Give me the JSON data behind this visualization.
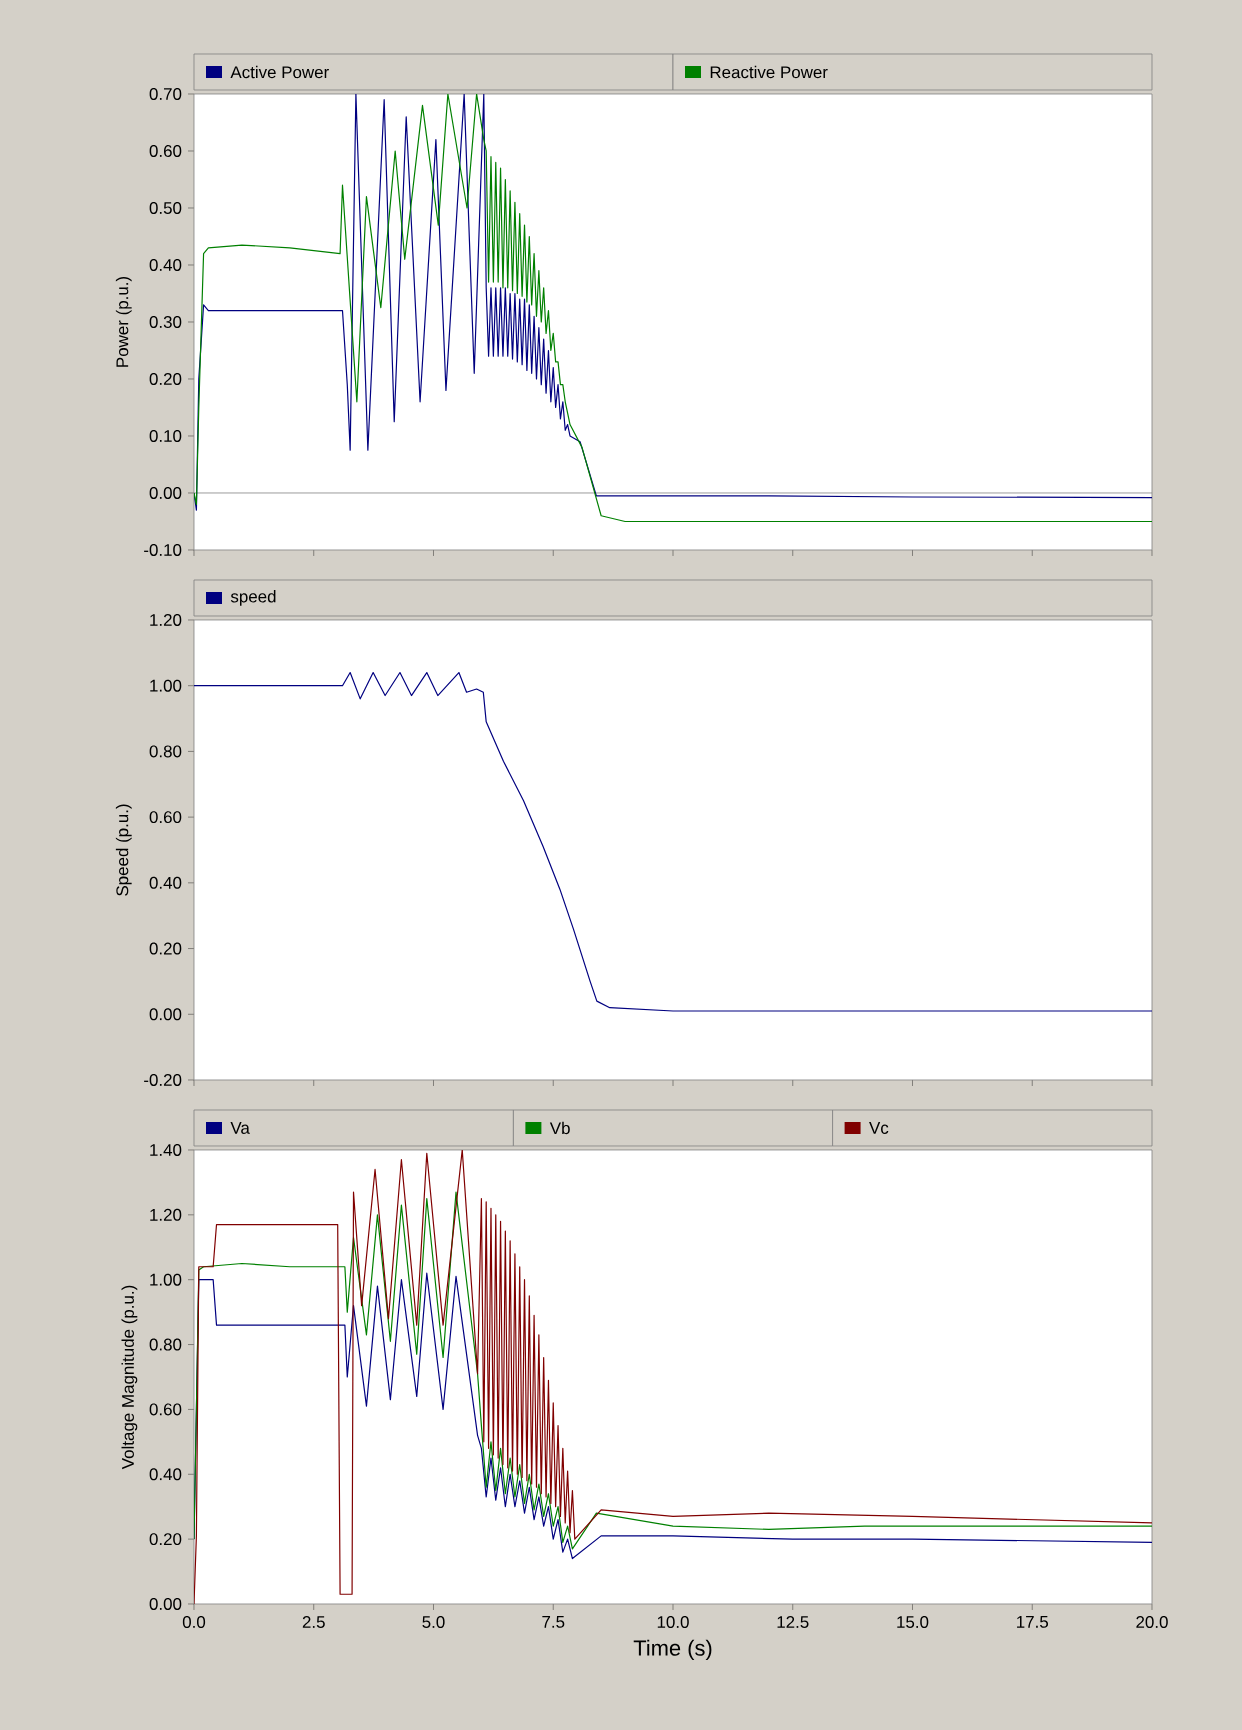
{
  "chart_data": [
    {
      "type": "line",
      "ylabel": "Power (p.u.)",
      "legend": "top",
      "tick_labels": "y",
      "xlim": [
        0,
        20
      ],
      "xticks": [
        {
          "value": 0,
          "label": null
        },
        {
          "value": 2.5,
          "label": null
        },
        {
          "value": 5,
          "label": null
        },
        {
          "value": 7.5,
          "label": null
        },
        {
          "value": 10,
          "label": null
        },
        {
          "value": 12.5,
          "label": null
        },
        {
          "value": 15,
          "label": null
        },
        {
          "value": 17.5,
          "label": null
        },
        {
          "value": 20,
          "label": null
        }
      ],
      "ylim": [
        -0.1,
        0.7
      ],
      "yticks": [
        {
          "value": -0.1,
          "label": "-0.10"
        },
        {
          "value": 0,
          "label": "0.00"
        },
        {
          "value": 0.1,
          "label": "0.10"
        },
        {
          "value": 0.2,
          "label": "0.20"
        },
        {
          "value": 0.3,
          "label": "0.30"
        },
        {
          "value": 0.4,
          "label": "0.40"
        },
        {
          "value": 0.5,
          "label": "0.50"
        },
        {
          "value": 0.6,
          "label": "0.60"
        },
        {
          "value": 0.7,
          "label": "0.70"
        }
      ],
      "ref_lines": [
        {
          "axis": "y",
          "value": 0,
          "color": "#808080"
        }
      ],
      "series": [
        {
          "name": "Active Power",
          "color": "#000080",
          "x": [
            0,
            0.05,
            0.1,
            0.2,
            0.3,
            0.5,
            1,
            2,
            3.1,
            3.2,
            3.26,
            3.38,
            3.63,
            3.97,
            4.18,
            4.43,
            4.72,
            5.05,
            5.26,
            5.64,
            5.85,
            6.05,
            6.1,
            6.15,
            6.2,
            6.25,
            6.3,
            6.35,
            6.4,
            6.45,
            6.5,
            6.55,
            6.6,
            6.65,
            6.7,
            6.75,
            6.8,
            6.85,
            6.9,
            6.95,
            7.0,
            7.05,
            7.1,
            7.15,
            7.2,
            7.25,
            7.3,
            7.35,
            7.4,
            7.45,
            7.5,
            7.55,
            7.6,
            7.65,
            7.7,
            7.75,
            7.8,
            7.85,
            8.06,
            8.4,
            9,
            12,
            15,
            20
          ],
          "values": [
            0,
            -0.03,
            0.2,
            0.33,
            0.32,
            0.32,
            0.32,
            0.32,
            0.32,
            0.19,
            0.075,
            0.7,
            0.075,
            0.69,
            0.125,
            0.66,
            0.16,
            0.62,
            0.18,
            0.7,
            0.21,
            0.7,
            0.36,
            0.24,
            0.36,
            0.24,
            0.36,
            0.24,
            0.36,
            0.24,
            0.36,
            0.24,
            0.35,
            0.235,
            0.35,
            0.23,
            0.34,
            0.225,
            0.34,
            0.215,
            0.33,
            0.21,
            0.31,
            0.2,
            0.29,
            0.19,
            0.27,
            0.175,
            0.25,
            0.16,
            0.22,
            0.15,
            0.19,
            0.13,
            0.16,
            0.11,
            0.12,
            0.1,
            0.09,
            -0.005,
            -0.005,
            -0.005,
            -0.007,
            -0.008
          ]
        },
        {
          "name": "Reactive Power",
          "color": "#008000",
          "x": [
            0,
            0.05,
            0.1,
            0.2,
            0.3,
            1,
            2,
            3.05,
            3.1,
            3.4,
            3.6,
            3.9,
            4.2,
            4.4,
            4.77,
            5.1,
            5.3,
            5.7,
            5.9,
            6.05,
            6.1,
            6.15,
            6.2,
            6.25,
            6.3,
            6.35,
            6.4,
            6.45,
            6.5,
            6.55,
            6.6,
            6.65,
            6.7,
            6.75,
            6.8,
            6.85,
            6.9,
            6.95,
            7.0,
            7.05,
            7.1,
            7.15,
            7.2,
            7.25,
            7.3,
            7.35,
            7.4,
            7.45,
            7.5,
            7.55,
            7.6,
            7.65,
            7.7,
            7.75,
            7.8,
            7.85,
            8.1,
            8.5,
            9,
            12,
            16,
            20
          ],
          "values": [
            0,
            -0.02,
            0.15,
            0.42,
            0.43,
            0.435,
            0.43,
            0.42,
            0.54,
            0.16,
            0.52,
            0.325,
            0.6,
            0.41,
            0.68,
            0.47,
            0.7,
            0.5,
            0.7,
            0.62,
            0.6,
            0.37,
            0.59,
            0.37,
            0.58,
            0.37,
            0.57,
            0.36,
            0.55,
            0.36,
            0.53,
            0.355,
            0.51,
            0.35,
            0.49,
            0.345,
            0.47,
            0.335,
            0.45,
            0.33,
            0.42,
            0.31,
            0.39,
            0.3,
            0.36,
            0.28,
            0.32,
            0.25,
            0.28,
            0.23,
            0.23,
            0.19,
            0.19,
            0.16,
            0.14,
            0.12,
            0.08,
            -0.04,
            -0.05,
            -0.05,
            -0.05,
            -0.05
          ]
        }
      ]
    },
    {
      "type": "line",
      "ylabel": "Speed (p.u.)",
      "legend": "top",
      "tick_labels": "y",
      "xlim": [
        0,
        20
      ],
      "xticks": [
        {
          "value": 0,
          "label": null
        },
        {
          "value": 2.5,
          "label": null
        },
        {
          "value": 5,
          "label": null
        },
        {
          "value": 7.5,
          "label": null
        },
        {
          "value": 10,
          "label": null
        },
        {
          "value": 12.5,
          "label": null
        },
        {
          "value": 15,
          "label": null
        },
        {
          "value": 17.5,
          "label": null
        },
        {
          "value": 20,
          "label": null
        }
      ],
      "ylim": [
        -0.2,
        1.2
      ],
      "yticks": [
        {
          "value": -0.2,
          "label": "-0.20"
        },
        {
          "value": 0,
          "label": "0.00"
        },
        {
          "value": 0.2,
          "label": "0.20"
        },
        {
          "value": 0.4,
          "label": "0.40"
        },
        {
          "value": 0.6,
          "label": "0.60"
        },
        {
          "value": 0.8,
          "label": "0.80"
        },
        {
          "value": 1,
          "label": "1.00"
        },
        {
          "value": 1.2,
          "label": "1.20"
        }
      ],
      "series": [
        {
          "name": "speed",
          "color": "#000080",
          "x": [
            0,
            1,
            2,
            3.1,
            3.26,
            3.47,
            3.74,
            3.99,
            4.3,
            4.54,
            4.86,
            5.09,
            5.53,
            5.69,
            5.9,
            6.04,
            6.1,
            6.46,
            6.88,
            7.29,
            7.64,
            7.92,
            8.27,
            8.41,
            8.68,
            10,
            15,
            20
          ],
          "values": [
            1,
            1,
            1,
            1,
            1.04,
            0.96,
            1.04,
            0.97,
            1.04,
            0.97,
            1.04,
            0.97,
            1.04,
            0.98,
            0.99,
            0.98,
            0.89,
            0.77,
            0.65,
            0.51,
            0.38,
            0.26,
            0.1,
            0.04,
            0.02,
            0.01,
            0.01,
            0.01
          ]
        }
      ]
    },
    {
      "type": "line",
      "xlabel": "Time (s)",
      "ylabel": "Voltage Magnitude (p.u.)",
      "legend": "top",
      "xlim": [
        0,
        20
      ],
      "xticks": [
        {
          "value": 0,
          "label": "0.0"
        },
        {
          "value": 2.5,
          "label": "2.5"
        },
        {
          "value": 5,
          "label": "5.0"
        },
        {
          "value": 7.5,
          "label": "7.5"
        },
        {
          "value": 10,
          "label": "10.0"
        },
        {
          "value": 12.5,
          "label": "12.5"
        },
        {
          "value": 15,
          "label": "15.0"
        },
        {
          "value": 17.5,
          "label": "17.5"
        },
        {
          "value": 20,
          "label": "20.0"
        }
      ],
      "ylim": [
        0,
        1.4
      ],
      "yticks": [
        {
          "value": 0,
          "label": "0.00"
        },
        {
          "value": 0.2,
          "label": "0.20"
        },
        {
          "value": 0.4,
          "label": "0.40"
        },
        {
          "value": 0.6,
          "label": "0.60"
        },
        {
          "value": 0.8,
          "label": "0.80"
        },
        {
          "value": 1,
          "label": "1.00"
        },
        {
          "value": 1.2,
          "label": "1.20"
        },
        {
          "value": 1.4,
          "label": "1.40"
        }
      ],
      "series": [
        {
          "name": "Va",
          "color": "#000080",
          "x": [
            0,
            0.05,
            0.1,
            0.4,
            0.47,
            1,
            2,
            3.15,
            3.2,
            3.33,
            3.6,
            3.83,
            4.1,
            4.33,
            4.65,
            4.86,
            5.2,
            5.47,
            5.92,
            6.0,
            6.1,
            6.2,
            6.3,
            6.4,
            6.5,
            6.6,
            6.7,
            6.8,
            6.9,
            7.0,
            7.1,
            7.2,
            7.3,
            7.4,
            7.5,
            7.6,
            7.7,
            7.8,
            7.9,
            8.5,
            10,
            12.5,
            15,
            20
          ],
          "values": [
            0.2,
            0.6,
            1.0,
            1.0,
            0.86,
            0.86,
            0.86,
            0.86,
            0.7,
            0.92,
            0.61,
            0.98,
            0.63,
            1.0,
            0.64,
            1.02,
            0.6,
            1.01,
            0.52,
            0.48,
            0.33,
            0.45,
            0.32,
            0.42,
            0.3,
            0.4,
            0.3,
            0.38,
            0.28,
            0.36,
            0.26,
            0.33,
            0.24,
            0.3,
            0.2,
            0.26,
            0.16,
            0.2,
            0.14,
            0.21,
            0.21,
            0.2,
            0.2,
            0.19
          ]
        },
        {
          "name": "Vb",
          "color": "#008000",
          "x": [
            0,
            0.05,
            0.1,
            0.2,
            1,
            2,
            3.15,
            3.2,
            3.33,
            3.6,
            3.83,
            4.1,
            4.33,
            4.65,
            4.86,
            5.2,
            5.47,
            5.92,
            6.0,
            6.1,
            6.2,
            6.3,
            6.4,
            6.5,
            6.6,
            6.7,
            6.8,
            6.9,
            7.0,
            7.1,
            7.2,
            7.3,
            7.4,
            7.5,
            7.6,
            7.7,
            7.8,
            7.9,
            8.4,
            10,
            12,
            14,
            20
          ],
          "values": [
            0.2,
            0.6,
            1.03,
            1.04,
            1.05,
            1.04,
            1.04,
            0.9,
            1.13,
            0.83,
            1.2,
            0.81,
            1.23,
            0.77,
            1.25,
            0.76,
            1.27,
            0.71,
            0.55,
            0.36,
            0.5,
            0.35,
            0.48,
            0.34,
            0.45,
            0.33,
            0.43,
            0.31,
            0.4,
            0.29,
            0.37,
            0.27,
            0.34,
            0.24,
            0.3,
            0.19,
            0.24,
            0.17,
            0.28,
            0.24,
            0.23,
            0.24,
            0.24
          ]
        },
        {
          "name": "Vc",
          "color": "#800000",
          "x": [
            0,
            0.05,
            0.1,
            0.4,
            0.47,
            1,
            2,
            3.0,
            3.05,
            3.3,
            3.33,
            3.5,
            3.78,
            4.06,
            4.33,
            4.65,
            4.86,
            5.2,
            5.6,
            5.92,
            6.0,
            6.05,
            6.1,
            6.15,
            6.2,
            6.25,
            6.3,
            6.35,
            6.4,
            6.45,
            6.5,
            6.55,
            6.6,
            6.65,
            6.7,
            6.75,
            6.8,
            6.85,
            6.9,
            6.95,
            7.0,
            7.05,
            7.1,
            7.15,
            7.2,
            7.25,
            7.3,
            7.35,
            7.4,
            7.45,
            7.5,
            7.55,
            7.6,
            7.65,
            7.7,
            7.75,
            7.8,
            7.85,
            7.9,
            7.95,
            8.5,
            10,
            12,
            15,
            17.5,
            20
          ],
          "values": [
            0,
            0.21,
            1.04,
            1.04,
            1.17,
            1.17,
            1.17,
            1.17,
            0.03,
            0.03,
            1.27,
            0.92,
            1.34,
            0.88,
            1.37,
            0.86,
            1.39,
            0.86,
            1.4,
            0.71,
            1.25,
            0.5,
            1.24,
            0.48,
            1.22,
            0.46,
            1.2,
            0.45,
            1.18,
            0.43,
            1.15,
            0.42,
            1.12,
            0.41,
            1.08,
            0.4,
            1.04,
            0.39,
            1.0,
            0.38,
            0.95,
            0.37,
            0.89,
            0.36,
            0.83,
            0.34,
            0.76,
            0.33,
            0.69,
            0.31,
            0.62,
            0.3,
            0.55,
            0.27,
            0.48,
            0.25,
            0.41,
            0.22,
            0.35,
            0.2,
            0.29,
            0.27,
            0.28,
            0.27,
            0.26,
            0.25
          ]
        }
      ]
    }
  ]
}
